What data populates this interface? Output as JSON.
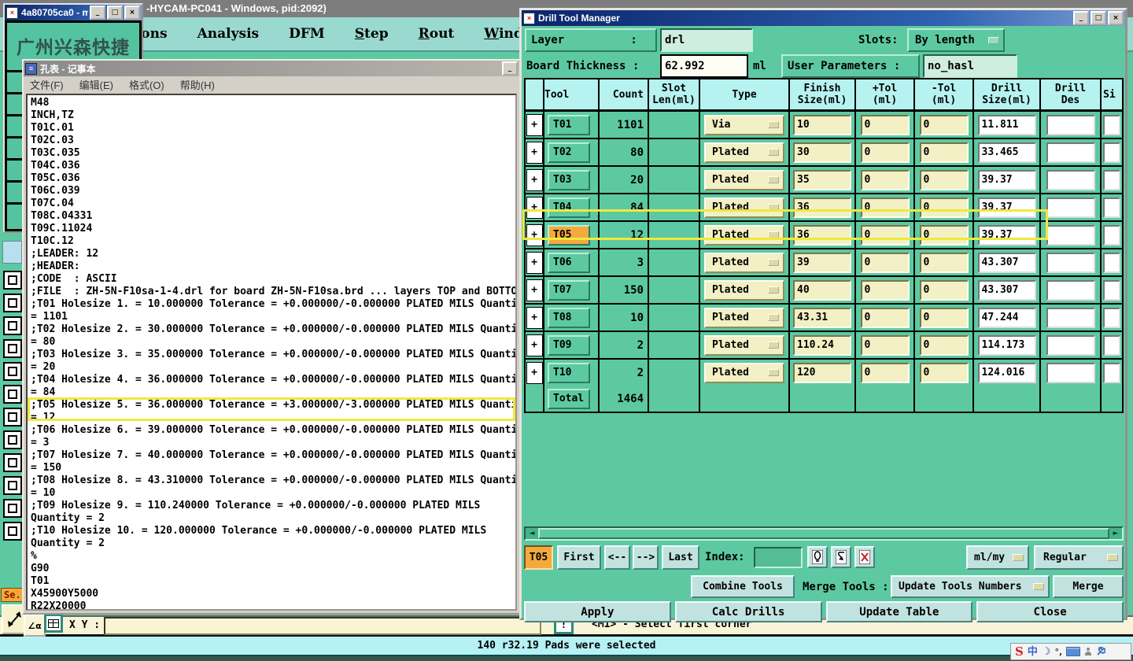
{
  "app": {
    "title": "-HYCAM-PC041 - Windows, pid:2092)",
    "menu": [
      {
        "label": "tions",
        "u": false
      },
      {
        "label": "Analysis",
        "u": false
      },
      {
        "label": "DFM",
        "u": false
      },
      {
        "label": "Step",
        "u": true
      },
      {
        "label": "Rout",
        "u": true
      },
      {
        "label": "Windows",
        "u": true
      }
    ],
    "xy_label": "X Y :",
    "status_message": "<M1> - Select first corner",
    "selection_status": "140 r32.19 Pads were selected",
    "sel_label": "Se."
  },
  "mini_window": {
    "title": "4a80705ca0 - m...",
    "content": "广州兴森快捷"
  },
  "notepad": {
    "title": "孔表 - 记事本",
    "menu": [
      "文件(F)",
      "编辑(E)",
      "格式(O)",
      "帮助(H)"
    ],
    "highlight_index": 24,
    "lines": [
      "M48",
      "INCH,TZ",
      "T01C.01",
      "T02C.03",
      "T03C.035",
      "T04C.036",
      "T05C.036",
      "T06C.039",
      "T07C.04",
      "T08C.04331",
      "T09C.11024",
      "T10C.12",
      ";LEADER: 12",
      ";HEADER:",
      ";CODE  : ASCII",
      ";FILE  : ZH-5N-F10sa-1-4.drl for board ZH-5N-F10sa.brd ... layers TOP and BOTTO",
      ";T01 Holesize 1. = 10.000000 Tolerance = +0.000000/-0.000000 PLATED MILS Quanti",
      "= 1101",
      ";T02 Holesize 2. = 30.000000 Tolerance = +0.000000/-0.000000 PLATED MILS Quanti",
      "= 80",
      ";T03 Holesize 3. = 35.000000 Tolerance = +0.000000/-0.000000 PLATED MILS Quanti",
      "= 20",
      ";T04 Holesize 4. = 36.000000 Tolerance = +0.000000/-0.000000 PLATED MILS Quanti",
      "= 84",
      ";T05 Holesize 5. = 36.000000 Tolerance = +3.000000/-3.000000 PLATED MILS Quanti",
      "= 12",
      ";T06 Holesize 6. = 39.000000 Tolerance = +0.000000/-0.000000 PLATED MILS Quanti",
      "= 3",
      ";T07 Holesize 7. = 40.000000 Tolerance = +0.000000/-0.000000 PLATED MILS Quanti",
      "= 150",
      ";T08 Holesize 8. = 43.310000 Tolerance = +0.000000/-0.000000 PLATED MILS Quanti",
      "= 10",
      ";T09 Holesize 9. = 110.240000 Tolerance = +0.000000/-0.000000 PLATED MILS",
      "Quantity = 2",
      ";T10 Holesize 10. = 120.000000 Tolerance = +0.000000/-0.000000 PLATED MILS",
      "Quantity = 2",
      "%",
      "G90",
      "T01",
      "X45900Y5000",
      "R22X20000"
    ]
  },
  "dialog": {
    "title": "Drill Tool Manager",
    "fields": {
      "layer_label": "Layer          :",
      "layer_value": "drl",
      "slots_label": "Slots:",
      "slots_value": "By length",
      "thickness_label": "Board Thickness :",
      "thickness_value": "62.992",
      "thickness_unit": "ml",
      "user_params_label": "User Parameters :",
      "user_params_value": "no_hasl"
    },
    "table": {
      "headers": [
        "",
        "Tool",
        "Count",
        "Slot\nLen(ml)",
        "Type",
        "Finish\nSize(ml)",
        "+Tol\n(ml)",
        "-Tol\n(ml)",
        "Drill\nSize(ml)",
        "Drill\nDes",
        "Si"
      ],
      "rows": [
        {
          "tool": "T01",
          "count": "1101",
          "type": "Via",
          "finish": "10",
          "plus_tol": "0",
          "minus_tol": "0",
          "drill": "11.811",
          "selected": false
        },
        {
          "tool": "T02",
          "count": "80",
          "type": "Plated",
          "finish": "30",
          "plus_tol": "0",
          "minus_tol": "0",
          "drill": "33.465",
          "selected": false
        },
        {
          "tool": "T03",
          "count": "20",
          "type": "Plated",
          "finish": "35",
          "plus_tol": "0",
          "minus_tol": "0",
          "drill": "39.37",
          "selected": false
        },
        {
          "tool": "T04",
          "count": "84",
          "type": "Plated",
          "finish": "36",
          "plus_tol": "0",
          "minus_tol": "0",
          "drill": "39.37",
          "selected": false
        },
        {
          "tool": "T05",
          "count": "12",
          "type": "Plated",
          "finish": "36",
          "plus_tol": "0",
          "minus_tol": "0",
          "drill": "39.37",
          "selected": true
        },
        {
          "tool": "T06",
          "count": "3",
          "type": "Plated",
          "finish": "39",
          "plus_tol": "0",
          "minus_tol": "0",
          "drill": "43.307",
          "selected": false
        },
        {
          "tool": "T07",
          "count": "150",
          "type": "Plated",
          "finish": "40",
          "plus_tol": "0",
          "minus_tol": "0",
          "drill": "43.307",
          "selected": false
        },
        {
          "tool": "T08",
          "count": "10",
          "type": "Plated",
          "finish": "43.31",
          "plus_tol": "0",
          "minus_tol": "0",
          "drill": "47.244",
          "selected": false
        },
        {
          "tool": "T09",
          "count": "2",
          "type": "Plated",
          "finish": "110.24",
          "plus_tol": "0",
          "minus_tol": "0",
          "drill": "114.173",
          "selected": false
        },
        {
          "tool": "T10",
          "count": "2",
          "type": "Plated",
          "finish": "120",
          "plus_tol": "0",
          "minus_tol": "0",
          "drill": "124.016",
          "selected": false
        }
      ],
      "total_label": "Total",
      "total_count": "1464"
    },
    "nav": {
      "current_tool": "T05",
      "first": "First",
      "prev": "<--",
      "next": "-->",
      "last": "Last",
      "index_label": "Index:",
      "units": "ml/my",
      "mode": "Regular"
    },
    "merge": {
      "combine": "Combine Tools",
      "merge_tools_label": "Merge Tools :",
      "merge_mode": "Update Tools Numbers",
      "merge_button": "Merge"
    },
    "actions": {
      "apply": "Apply",
      "calc": "Calc Drills",
      "update": "Update Table",
      "close": "Close"
    }
  },
  "icons": {
    "minimize": "_",
    "maximize": "□",
    "close": "×",
    "plus": "+",
    "scroll_left": "◄",
    "scroll_right": "►",
    "angle": "∠α",
    "prompt": "!",
    "sogou": "S",
    "zh": "中",
    "moon": "☽",
    "degree": "°,"
  },
  "colors": {
    "dialog_green": "#5dc9a2",
    "header_cyan": "#b6f2f0",
    "field_yellow": "#f2f0c4",
    "selected_orange": "#f4a93c",
    "highlight_yellow": "#efe93e",
    "status_cyan": "#b5f1f5",
    "title_blue": "#0a246a"
  }
}
